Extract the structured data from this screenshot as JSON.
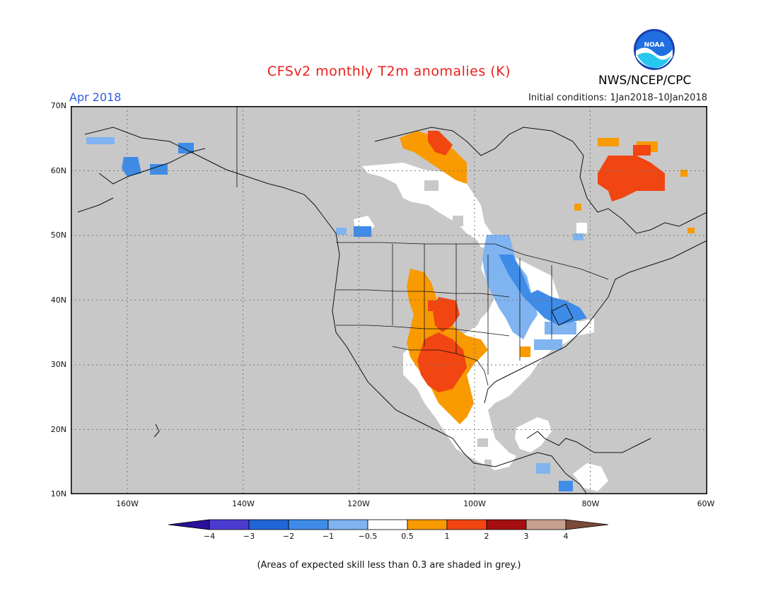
{
  "title": "CFSv2 monthly T2m anomalies (K)",
  "agency": "NWS/NCEP/CPC",
  "logo_text": "NOAA",
  "period": "Apr 2018",
  "initial_conditions": "Initial conditions: 1Jan2018–10Jan2018",
  "lat_labels": [
    "70N",
    "60N",
    "50N",
    "40N",
    "30N",
    "20N",
    "10N"
  ],
  "lon_labels": [
    "160W",
    "140W",
    "120W",
    "100W",
    "80W",
    "60W"
  ],
  "colorbar": {
    "labels": [
      "−4",
      "−3",
      "−2",
      "−1",
      "−0.5",
      "0.5",
      "1",
      "2",
      "3",
      "4"
    ],
    "colors": [
      "#2a0f99",
      "#4b3bd1",
      "#2166d6",
      "#3f8be8",
      "#7fb4f0",
      "#ffffff",
      "#f89a00",
      "#f14512",
      "#a50f0f",
      "#c8a090",
      "#7a4a3a"
    ]
  },
  "colors": {
    "no_skill_grey": "#c8c8c8",
    "title_red": "#e8201c",
    "period_blue": "#2f5ae0"
  },
  "footnote": "(Areas of expected skill less than 0.3 are shaded in grey.)"
}
